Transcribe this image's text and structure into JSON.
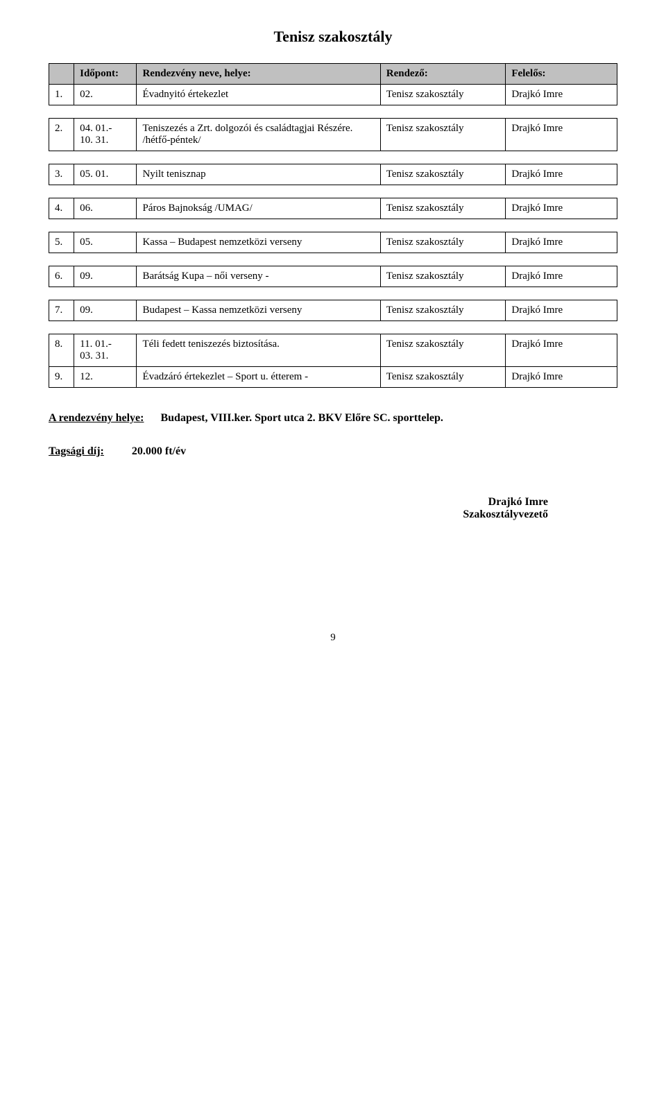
{
  "title": "Tenisz szakosztály",
  "headers": {
    "idopont": "Időpont:",
    "nev": "Rendezvény neve, helye:",
    "rendezo": "Rendező:",
    "felelos": "Felelős:"
  },
  "rows": [
    {
      "n": "1.",
      "date": "02.",
      "name": "Évadnyitó értekezlet",
      "org": "Tenisz szakosztály",
      "resp": "Drajkó Imre"
    },
    {
      "n": "2.",
      "date": "04. 01.-\n10. 31.",
      "name": "Teniszezés a Zrt. dolgozói és családtagjai Részére. /hétfő-péntek/",
      "org": "Tenisz szakosztály",
      "resp": "Drajkó Imre"
    },
    {
      "n": "3.",
      "date": "05. 01.",
      "name": "Nyilt tenisznap",
      "org": "Tenisz szakosztály",
      "resp": "Drajkó Imre"
    },
    {
      "n": "4.",
      "date": "06.",
      "name": "Páros Bajnokság /UMAG/",
      "org": "Tenisz szakosztály",
      "resp": "Drajkó Imre"
    },
    {
      "n": "5.",
      "date": "05.",
      "name": "Kassa – Budapest nemzetközi verseny",
      "org": "Tenisz szakosztály",
      "resp": "Drajkó Imre"
    },
    {
      "n": "6.",
      "date": "09.",
      "name": "Barátság Kupa – női verseny -",
      "org": "Tenisz szakosztály",
      "resp": "Drajkó Imre"
    },
    {
      "n": "7.",
      "date": "09.",
      "name": "Budapest – Kassa nemzetközi verseny",
      "org": "Tenisz szakosztály",
      "resp": "Drajkó Imre"
    },
    {
      "n": "8.",
      "date": "11. 01.-\n03. 31.",
      "name": "Téli fedett teniszezés biztosítása.",
      "org": "Tenisz szakosztály",
      "resp": "Drajkó Imre"
    },
    {
      "n": "9.",
      "date": "12.",
      "name": "Évadzáró értekezlet – Sport u. étterem -",
      "org": "Tenisz szakosztály",
      "resp": "Drajkó Imre"
    }
  ],
  "footer": {
    "venue_label": "A rendezvény helye:",
    "venue_value": "Budapest, VIII.ker. Sport utca 2. BKV Előre SC. sporttelep.",
    "fee_label": "Tagsági díj:",
    "fee_value": "20.000 ft/év",
    "sig_name": "Drajkó Imre",
    "sig_role": "Szakosztályvezető"
  },
  "page_number": "9"
}
